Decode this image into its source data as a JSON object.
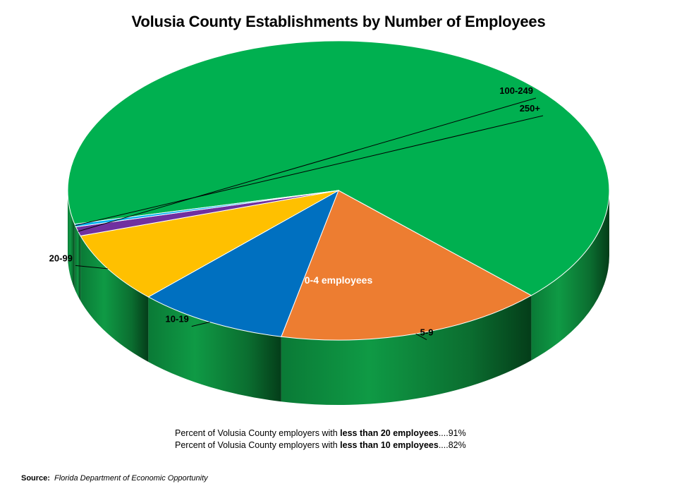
{
  "chart_data": {
    "type": "pie",
    "title": "Volusia County Establishments by Number of Employees",
    "slices": [
      {
        "label": "0-4 employees",
        "value": 66,
        "color": "#00B050",
        "label_inside": true
      },
      {
        "label": "5-9",
        "value": 16,
        "color": "#ED7D31"
      },
      {
        "label": "10-19",
        "value": 9,
        "color": "#0070C0"
      },
      {
        "label": "20-99",
        "value": 7.7,
        "color": "#FFC000"
      },
      {
        "label": "100-249",
        "value": 1,
        "color": "#7030A0"
      },
      {
        "label": "250+",
        "value": 0.3,
        "color": "#00B0F0"
      }
    ],
    "style": "3d"
  },
  "notes": [
    {
      "pre": "Percent of Volusia County employers with ",
      "bold": "less than 20 employees",
      "post": "....91%"
    },
    {
      "pre": "Percent of Volusia County employers with ",
      "bold": "less than 10 employees",
      "post": "....82%"
    }
  ],
  "source": {
    "label": "Source:",
    "value": "Florida Department  of Economic Opportunity"
  }
}
